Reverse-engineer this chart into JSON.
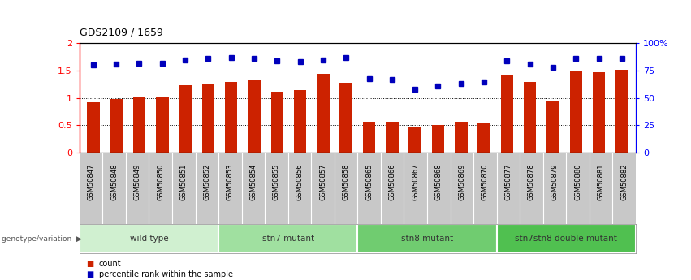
{
  "title": "GDS2109 / 1659",
  "samples": [
    "GSM50847",
    "GSM50848",
    "GSM50849",
    "GSM50850",
    "GSM50851",
    "GSM50852",
    "GSM50853",
    "GSM50854",
    "GSM50855",
    "GSM50856",
    "GSM50857",
    "GSM50858",
    "GSM50865",
    "GSM50866",
    "GSM50867",
    "GSM50868",
    "GSM50869",
    "GSM50870",
    "GSM50877",
    "GSM50878",
    "GSM50879",
    "GSM50880",
    "GSM50881",
    "GSM50882"
  ],
  "counts": [
    0.92,
    0.98,
    1.02,
    1.01,
    1.23,
    1.27,
    1.3,
    1.33,
    1.12,
    1.14,
    1.44,
    1.28,
    0.56,
    0.57,
    0.48,
    0.51,
    0.57,
    0.55,
    1.42,
    1.29,
    0.95,
    1.49,
    1.47,
    1.52
  ],
  "percentiles": [
    80,
    81,
    82,
    82,
    85,
    86,
    87,
    86,
    84,
    83,
    85,
    87,
    68,
    67,
    58,
    61,
    63,
    65,
    84,
    81,
    78,
    86,
    86,
    86
  ],
  "groups": [
    {
      "label": "wild type",
      "start": 0,
      "end": 6,
      "color": "#d0f0d0"
    },
    {
      "label": "stn7 mutant",
      "start": 6,
      "end": 12,
      "color": "#a0e0a0"
    },
    {
      "label": "stn8 mutant",
      "start": 12,
      "end": 18,
      "color": "#70cc70"
    },
    {
      "label": "stn7stn8 double mutant",
      "start": 18,
      "end": 24,
      "color": "#50c050"
    }
  ],
  "bar_color": "#cc2200",
  "dot_color": "#0000bb",
  "ylim_left": [
    0,
    2
  ],
  "ylim_right": [
    0,
    100
  ],
  "yticks_left": [
    0,
    0.5,
    1.0,
    1.5,
    2.0
  ],
  "ytick_labels_left": [
    "0",
    "0.5",
    "1",
    "1.5",
    "2"
  ],
  "yticks_right": [
    0,
    25,
    50,
    75,
    100
  ],
  "ytick_labels_right": [
    "0",
    "25",
    "50",
    "75",
    "100%"
  ],
  "hlines": [
    0.5,
    1.0,
    1.5
  ],
  "legend_count_label": "count",
  "legend_pct_label": "percentile rank within the sample",
  "genotype_label": "genotype/variation",
  "bar_width": 0.55,
  "xlim": [
    -0.6,
    23.6
  ]
}
